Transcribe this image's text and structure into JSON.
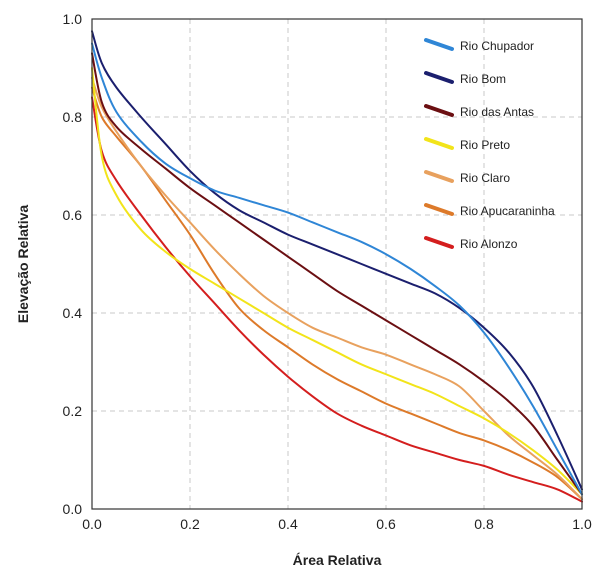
{
  "chart_data": {
    "type": "line",
    "xlabel": "Área Relativa",
    "ylabel": "Elevação Relativa",
    "xlim": [
      0,
      1
    ],
    "ylim": [
      0,
      1
    ],
    "xticks": [
      "0.0",
      "0.2",
      "0.4",
      "0.6",
      "0.8",
      "1.0"
    ],
    "yticks": [
      "0.0",
      "0.2",
      "0.4",
      "0.6",
      "0.8",
      "1.0"
    ],
    "grid": true,
    "legend_position": "top-right",
    "series": [
      {
        "name": "Rio Chupador",
        "color": "#2f86d6",
        "points": [
          [
            0,
            0.95
          ],
          [
            0.02,
            0.88
          ],
          [
            0.05,
            0.81
          ],
          [
            0.1,
            0.75
          ],
          [
            0.15,
            0.705
          ],
          [
            0.2,
            0.675
          ],
          [
            0.25,
            0.65
          ],
          [
            0.3,
            0.635
          ],
          [
            0.35,
            0.62
          ],
          [
            0.4,
            0.605
          ],
          [
            0.45,
            0.585
          ],
          [
            0.5,
            0.565
          ],
          [
            0.55,
            0.545
          ],
          [
            0.6,
            0.52
          ],
          [
            0.65,
            0.49
          ],
          [
            0.7,
            0.455
          ],
          [
            0.75,
            0.415
          ],
          [
            0.8,
            0.36
          ],
          [
            0.85,
            0.29
          ],
          [
            0.9,
            0.21
          ],
          [
            0.95,
            0.12
          ],
          [
            1.0,
            0.03
          ]
        ]
      },
      {
        "name": "Rio Bom",
        "color": "#1b1f6e",
        "points": [
          [
            0,
            0.975
          ],
          [
            0.02,
            0.91
          ],
          [
            0.05,
            0.86
          ],
          [
            0.1,
            0.8
          ],
          [
            0.15,
            0.745
          ],
          [
            0.2,
            0.69
          ],
          [
            0.25,
            0.645
          ],
          [
            0.3,
            0.61
          ],
          [
            0.35,
            0.585
          ],
          [
            0.4,
            0.56
          ],
          [
            0.45,
            0.54
          ],
          [
            0.5,
            0.52
          ],
          [
            0.55,
            0.5
          ],
          [
            0.6,
            0.48
          ],
          [
            0.65,
            0.46
          ],
          [
            0.7,
            0.44
          ],
          [
            0.75,
            0.41
          ],
          [
            0.8,
            0.37
          ],
          [
            0.85,
            0.32
          ],
          [
            0.9,
            0.25
          ],
          [
            0.95,
            0.15
          ],
          [
            1.0,
            0.04
          ]
        ]
      },
      {
        "name": "Rio das Antas",
        "color": "#6b0f12",
        "points": [
          [
            0,
            0.93
          ],
          [
            0.02,
            0.83
          ],
          [
            0.05,
            0.78
          ],
          [
            0.1,
            0.735
          ],
          [
            0.15,
            0.695
          ],
          [
            0.2,
            0.655
          ],
          [
            0.25,
            0.62
          ],
          [
            0.3,
            0.585
          ],
          [
            0.35,
            0.55
          ],
          [
            0.4,
            0.515
          ],
          [
            0.45,
            0.48
          ],
          [
            0.5,
            0.445
          ],
          [
            0.55,
            0.415
          ],
          [
            0.6,
            0.385
          ],
          [
            0.65,
            0.355
          ],
          [
            0.7,
            0.325
          ],
          [
            0.75,
            0.295
          ],
          [
            0.8,
            0.26
          ],
          [
            0.85,
            0.22
          ],
          [
            0.9,
            0.17
          ],
          [
            0.95,
            0.1
          ],
          [
            1.0,
            0.03
          ]
        ]
      },
      {
        "name": "Rio Preto",
        "color": "#f2e41a",
        "points": [
          [
            0,
            0.9
          ],
          [
            0.02,
            0.72
          ],
          [
            0.05,
            0.64
          ],
          [
            0.1,
            0.57
          ],
          [
            0.15,
            0.525
          ],
          [
            0.2,
            0.49
          ],
          [
            0.25,
            0.46
          ],
          [
            0.3,
            0.43
          ],
          [
            0.35,
            0.4
          ],
          [
            0.4,
            0.37
          ],
          [
            0.45,
            0.345
          ],
          [
            0.5,
            0.32
          ],
          [
            0.55,
            0.295
          ],
          [
            0.6,
            0.275
          ],
          [
            0.65,
            0.255
          ],
          [
            0.7,
            0.235
          ],
          [
            0.75,
            0.21
          ],
          [
            0.8,
            0.185
          ],
          [
            0.85,
            0.155
          ],
          [
            0.9,
            0.12
          ],
          [
            0.95,
            0.08
          ],
          [
            1.0,
            0.03
          ]
        ]
      },
      {
        "name": "Rio Claro",
        "color": "#e8a15e",
        "points": [
          [
            0,
            0.88
          ],
          [
            0.02,
            0.82
          ],
          [
            0.05,
            0.77
          ],
          [
            0.1,
            0.7
          ],
          [
            0.15,
            0.64
          ],
          [
            0.2,
            0.585
          ],
          [
            0.25,
            0.53
          ],
          [
            0.3,
            0.48
          ],
          [
            0.35,
            0.435
          ],
          [
            0.4,
            0.4
          ],
          [
            0.45,
            0.37
          ],
          [
            0.5,
            0.35
          ],
          [
            0.55,
            0.33
          ],
          [
            0.6,
            0.315
          ],
          [
            0.65,
            0.295
          ],
          [
            0.7,
            0.275
          ],
          [
            0.75,
            0.25
          ],
          [
            0.8,
            0.2
          ],
          [
            0.85,
            0.15
          ],
          [
            0.9,
            0.11
          ],
          [
            0.95,
            0.07
          ],
          [
            1.0,
            0.02
          ]
        ]
      },
      {
        "name": "Rio Apucaraninha",
        "color": "#dd7a2a",
        "points": [
          [
            0,
            0.86
          ],
          [
            0.02,
            0.8
          ],
          [
            0.05,
            0.76
          ],
          [
            0.1,
            0.7
          ],
          [
            0.15,
            0.63
          ],
          [
            0.2,
            0.56
          ],
          [
            0.25,
            0.48
          ],
          [
            0.3,
            0.41
          ],
          [
            0.35,
            0.365
          ],
          [
            0.4,
            0.33
          ],
          [
            0.45,
            0.295
          ],
          [
            0.5,
            0.265
          ],
          [
            0.55,
            0.24
          ],
          [
            0.6,
            0.215
          ],
          [
            0.65,
            0.195
          ],
          [
            0.7,
            0.175
          ],
          [
            0.75,
            0.155
          ],
          [
            0.8,
            0.14
          ],
          [
            0.85,
            0.12
          ],
          [
            0.9,
            0.095
          ],
          [
            0.95,
            0.065
          ],
          [
            1.0,
            0.02
          ]
        ]
      },
      {
        "name": "Rio Alonzo",
        "color": "#d41e1e",
        "points": [
          [
            0,
            0.84
          ],
          [
            0.02,
            0.73
          ],
          [
            0.05,
            0.67
          ],
          [
            0.1,
            0.6
          ],
          [
            0.15,
            0.535
          ],
          [
            0.2,
            0.475
          ],
          [
            0.25,
            0.42
          ],
          [
            0.3,
            0.365
          ],
          [
            0.35,
            0.315
          ],
          [
            0.4,
            0.27
          ],
          [
            0.45,
            0.23
          ],
          [
            0.5,
            0.195
          ],
          [
            0.55,
            0.17
          ],
          [
            0.6,
            0.15
          ],
          [
            0.65,
            0.13
          ],
          [
            0.7,
            0.115
          ],
          [
            0.75,
            0.1
          ],
          [
            0.8,
            0.088
          ],
          [
            0.85,
            0.07
          ],
          [
            0.9,
            0.055
          ],
          [
            0.95,
            0.04
          ],
          [
            1.0,
            0.015
          ]
        ]
      }
    ]
  }
}
